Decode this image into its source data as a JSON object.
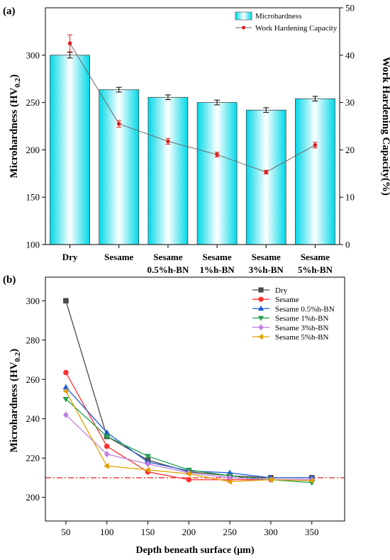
{
  "chart_data": [
    {
      "panel_label": "(a)",
      "type": "bar",
      "categories": [
        [
          "Dry"
        ],
        [
          "Sesame"
        ],
        [
          "Sesame",
          "0.5%h-BN"
        ],
        [
          "Sesame",
          "1%h-BN"
        ],
        [
          "Sesame",
          "3%h-BN"
        ],
        [
          "Sesame",
          "5%h-BN"
        ]
      ],
      "ylabel": "Microhardness (HV",
      "ylabel_sub": "0.2",
      "ylabel_suffix": ")",
      "ylim": [
        100,
        350
      ],
      "yticks": [
        100,
        150,
        200,
        250,
        300
      ],
      "y2label": "Work Hardening Capacity(%)",
      "y2lim": [
        0,
        50
      ],
      "y2ticks": [
        0,
        10,
        20,
        30,
        40,
        50
      ],
      "legend_position": "top-right",
      "series": [
        {
          "name": "Microhardness",
          "type": "bar",
          "axis": "left",
          "values": [
            300,
            263.5,
            255.5,
            250,
            242,
            254
          ],
          "errors": [
            3,
            2.5,
            2.5,
            2.5,
            2.5,
            2.5
          ],
          "color": "#00d8e8"
        },
        {
          "name": "Work Hardening Capacity",
          "type": "line",
          "axis": "right",
          "values": [
            42.5,
            25.5,
            21.8,
            19,
            15.3,
            21
          ],
          "errors": [
            1.8,
            0.7,
            0.6,
            0.5,
            0.4,
            0.6
          ],
          "color": "#e02020",
          "line_color": "#6b6b6b"
        }
      ]
    },
    {
      "panel_label": "(b)",
      "type": "line",
      "x": [
        50,
        100,
        150,
        200,
        250,
        300,
        350
      ],
      "xlabel": "Depth beneath surface (μm)",
      "ylabel": "Microhardness (HV",
      "ylabel_sub": "0.2",
      "ylabel_suffix": ")",
      "xlim": [
        25,
        390
      ],
      "ylim": [
        188,
        312
      ],
      "xticks": [
        50,
        100,
        150,
        200,
        250,
        300,
        350
      ],
      "yticks": [
        200,
        220,
        240,
        260,
        280,
        300
      ],
      "reference_line": {
        "y": 210,
        "style": "dash-dot",
        "color": "#e02020"
      },
      "legend_position": "top-right",
      "series": [
        {
          "name": "Dry",
          "marker": "square",
          "color": "#4a4a4a",
          "values": [
            300,
            231,
            219,
            213,
            211,
            210,
            210
          ]
        },
        {
          "name": "Sesame",
          "marker": "circle",
          "color": "#ff3030",
          "values": [
            263.5,
            226,
            213,
            209,
            209,
            209,
            209
          ]
        },
        {
          "name": "Sesame 0.5%h-BN",
          "marker": "triangle-up",
          "color": "#1f5ad8",
          "values": [
            256,
            233,
            218,
            213.5,
            212.5,
            210,
            210
          ]
        },
        {
          "name": "Sesame 1%h-BN",
          "marker": "triangle-down",
          "color": "#20a050",
          "values": [
            250,
            231,
            221,
            214,
            211,
            209,
            207.5
          ]
        },
        {
          "name": "Sesame 3%h-BN",
          "marker": "diamond",
          "color": "#c080e0",
          "values": [
            242,
            222,
            217,
            212.5,
            210,
            209,
            209
          ]
        },
        {
          "name": "Sesame 5%h-BN",
          "marker": "triangle-left",
          "color": "#e0a000",
          "values": [
            254,
            216,
            214,
            212,
            208,
            209,
            208.5
          ]
        }
      ]
    }
  ]
}
